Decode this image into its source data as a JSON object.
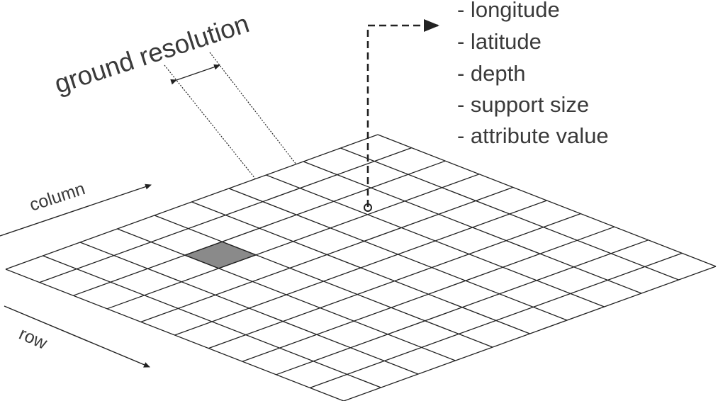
{
  "diagram": {
    "title_label": "ground resolution",
    "column_label": "column",
    "row_label": "row",
    "attributes": [
      "- longitude",
      "- latitude",
      "- depth",
      "- support size",
      "- attribute value"
    ],
    "grid": {
      "rows": 10,
      "cols": 10,
      "highlighted_cell": {
        "row": 2,
        "col": 3
      }
    },
    "colors": {
      "line": "#222222",
      "cell_fill": "#8a8a8a",
      "text": "#3a3a3a"
    }
  }
}
